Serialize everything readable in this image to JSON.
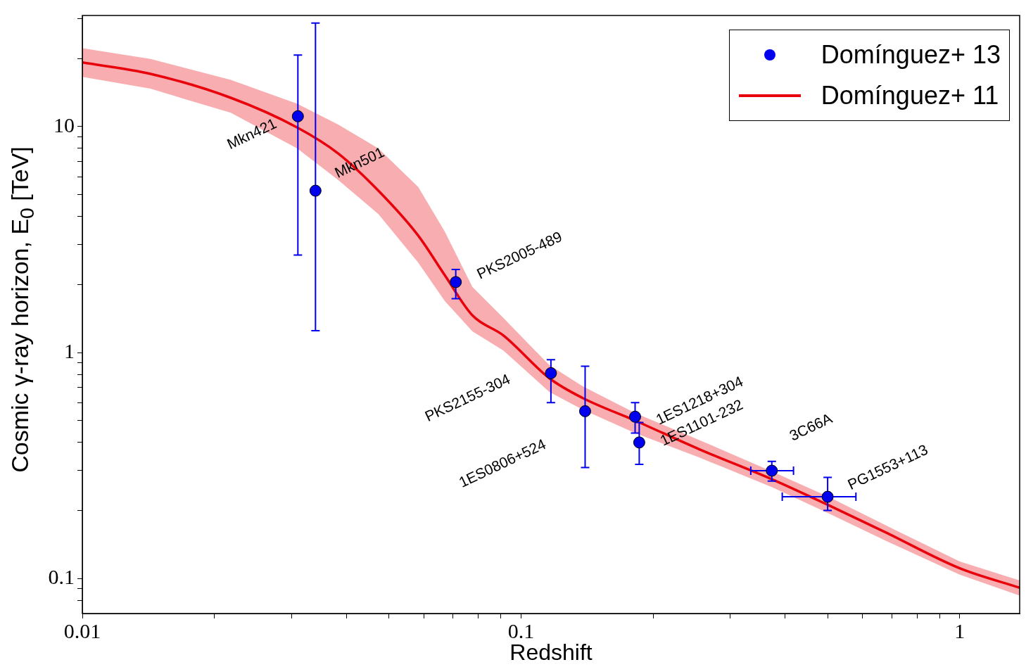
{
  "chart_data": {
    "type": "scatter",
    "xlabel": "Redshift",
    "ylabel": "Cosmic γ-ray horizon, E$_{0}$ [TeV]",
    "log": "xy",
    "legend": "top right",
    "xlim": [
      0.01,
      1.37
    ],
    "ylim": [
      0.07,
      31
    ],
    "xticks": [
      0.01,
      {
        "value": 0.02,
        "label": null
      },
      {
        "value": 0.03,
        "label": null
      },
      {
        "value": 0.04,
        "label": null
      },
      {
        "value": 0.05,
        "label": null
      },
      {
        "value": 0.06,
        "label": null
      },
      {
        "value": 0.07,
        "label": null
      },
      {
        "value": 0.08,
        "label": null
      },
      {
        "value": 0.09,
        "label": null
      },
      0.1,
      {
        "value": 0.2,
        "label": null
      },
      {
        "value": 0.3,
        "label": null
      },
      {
        "value": 0.4,
        "label": null
      },
      {
        "value": 0.5,
        "label": null
      },
      {
        "value": 0.6,
        "label": null
      },
      {
        "value": 0.7,
        "label": null
      },
      {
        "value": 0.8,
        "label": null
      },
      {
        "value": 0.9,
        "label": null
      },
      1
    ],
    "yticks": [
      {
        "value": 0.08,
        "label": null
      },
      {
        "value": 0.09,
        "label": null
      },
      0.1,
      {
        "value": 0.2,
        "label": null
      },
      {
        "value": 0.3,
        "label": null
      },
      {
        "value": 0.4,
        "label": null
      },
      {
        "value": 0.5,
        "label": null
      },
      {
        "value": 0.6,
        "label": null
      },
      {
        "value": 0.7,
        "label": null
      },
      {
        "value": 0.8,
        "label": null
      },
      {
        "value": 0.9,
        "label": null
      },
      1,
      {
        "value": 2,
        "label": null
      },
      {
        "value": 3,
        "label": null
      },
      {
        "value": 4,
        "label": null
      },
      {
        "value": 5,
        "label": null
      },
      {
        "value": 6,
        "label": null
      },
      {
        "value": 7,
        "label": null
      },
      {
        "value": 8,
        "label": null
      },
      {
        "value": 9,
        "label": null
      },
      10,
      {
        "value": 20,
        "label": null
      },
      {
        "value": 30,
        "label": null
      }
    ],
    "series": [
      {
        "name": "Domínguez+ 13",
        "marker": "circle",
        "color": "#0000ee",
        "x": [
          0.031,
          0.034,
          0.071,
          0.117,
          0.14,
          0.182,
          0.186,
          0.373,
          0.5
        ],
        "values": [
          11.1,
          5.2,
          2.05,
          0.81,
          0.55,
          0.52,
          0.4,
          0.3,
          0.23
        ],
        "errors": [
          [
            2.7,
            20.7
          ],
          [
            1.25,
            28.7
          ],
          [
            1.73,
            2.33
          ],
          [
            0.6,
            0.93
          ],
          [
            0.31,
            0.87
          ],
          [
            0.44,
            0.6
          ],
          [
            0.32,
            0.49
          ],
          [
            0.27,
            0.33
          ],
          [
            0.2,
            0.28
          ]
        ],
        "xerrors": [
          null,
          null,
          null,
          null,
          null,
          null,
          null,
          [
            0.334,
            0.418
          ],
          [
            0.394,
            0.58
          ]
        ]
      },
      {
        "name": "Domínguez+ 11",
        "type": "line",
        "marker": "none",
        "color": "#e8000b",
        "x": [
          0.01,
          0.0143,
          0.0218,
          0.0309,
          0.0383,
          0.0473,
          0.0583,
          0.067,
          0.0775,
          0.0912,
          0.116,
          0.138,
          0.182,
          0.255,
          0.373,
          0.5,
          0.678,
          1.0,
          1.37
        ],
        "values": [
          19.2,
          17.1,
          13.4,
          9.9,
          7.6,
          5.2,
          3.29,
          2.2,
          1.46,
          1.19,
          0.77,
          0.63,
          0.5,
          0.373,
          0.275,
          0.212,
          0.16,
          0.111,
          0.091
        ],
        "upper": [
          22.2,
          19.9,
          16.1,
          12.6,
          10.2,
          8.0,
          5.4,
          3.43,
          1.95,
          1.42,
          0.88,
          0.71,
          0.54,
          0.41,
          0.298,
          0.231,
          0.172,
          0.119,
          0.098
        ],
        "lower": [
          16.6,
          14.7,
          11.5,
          8.0,
          5.8,
          4.1,
          2.5,
          1.69,
          1.24,
          1.02,
          0.67,
          0.56,
          0.44,
          0.343,
          0.254,
          0.195,
          0.147,
          0.104,
          0.084
        ]
      }
    ],
    "annotations": [
      {
        "text": "Mkn421",
        "x": 0.031,
        "y": 11.1
      },
      {
        "text": "Mkn501",
        "x": 0.034,
        "y": 5.2
      },
      {
        "text": "PKS2005-489",
        "x": 0.071,
        "y": 2.05
      },
      {
        "text": "PKS2155-304",
        "x": 0.117,
        "y": 0.81
      },
      {
        "text": "1ES0806+524",
        "x": 0.14,
        "y": 0.55
      },
      {
        "text": "1ES1218+304",
        "x": 0.182,
        "y": 0.52
      },
      {
        "text": "1ES1101-232",
        "x": 0.186,
        "y": 0.4
      },
      {
        "text": "3C66A",
        "x": 0.373,
        "y": 0.3
      },
      {
        "text": "PG1553+113",
        "x": 0.5,
        "y": 0.23
      }
    ]
  }
}
